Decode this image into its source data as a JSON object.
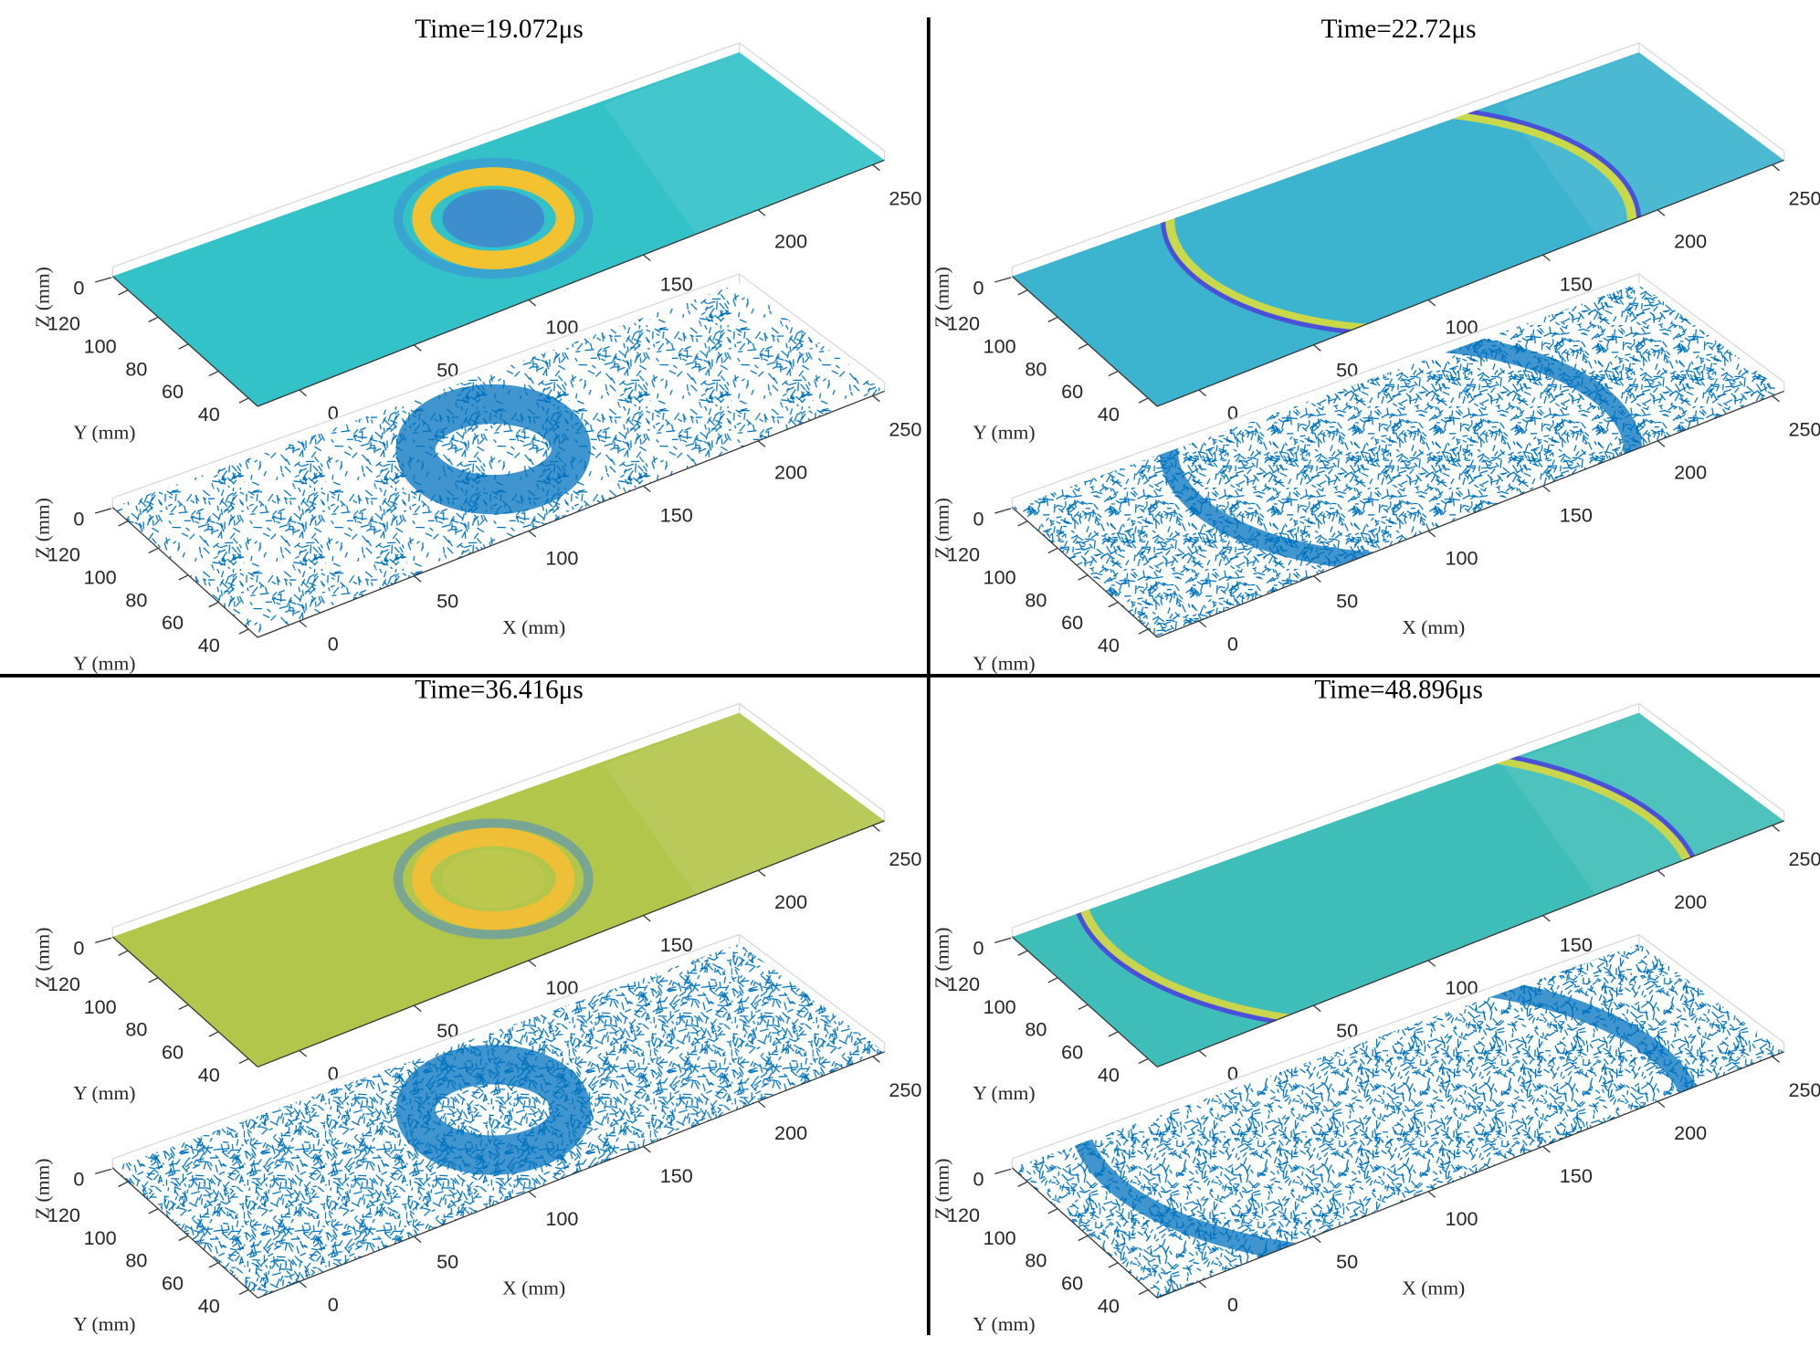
{
  "panels": [
    {
      "title": "Time=19.072μs",
      "surface_color": "#33c2c8",
      "plots": [
        {
          "type": "surface",
          "xticks": [
            0,
            50,
            100,
            150,
            200,
            250
          ],
          "yticks": [
            40,
            60,
            80,
            100,
            120
          ],
          "zticks": [
            0
          ],
          "ylabel": "Y (mm)",
          "zlabel": "Z (mm)"
        },
        {
          "type": "quiver",
          "color": "#0072bd",
          "xticks": [
            0,
            50,
            100,
            150,
            200,
            250
          ],
          "yticks": [
            40,
            60,
            80,
            100,
            120
          ],
          "zticks": [
            0
          ],
          "xlabel": "X (mm)",
          "ylabel": "Y (mm)",
          "zlabel": "Z (mm)"
        }
      ]
    },
    {
      "title": "Time=22.72μs",
      "surface_color": "#3cb4cf",
      "plots": [
        {
          "type": "surface",
          "xticks": [
            0,
            50,
            100,
            150,
            200,
            250
          ],
          "yticks": [
            40,
            60,
            80,
            100,
            120
          ],
          "zticks": [
            0
          ],
          "ylabel": "Y (mm)",
          "zlabel": "Z (mm)"
        },
        {
          "type": "quiver",
          "color": "#0072bd",
          "xticks": [
            0,
            50,
            100,
            150,
            200,
            250
          ],
          "yticks": [
            40,
            60,
            80,
            100,
            120
          ],
          "zticks": [
            0
          ],
          "xlabel": "X (mm)",
          "ylabel": "Y (mm)",
          "zlabel": "Z (mm)"
        }
      ]
    },
    {
      "title": "Time=36.416μs",
      "surface_color": "#b3c64c",
      "plots": [
        {
          "type": "surface",
          "xticks": [
            0,
            50,
            100,
            150,
            200,
            250
          ],
          "yticks": [
            40,
            60,
            80,
            100,
            120
          ],
          "zticks": [
            0
          ],
          "ylabel": "Y (mm)",
          "zlabel": "Z (mm)"
        },
        {
          "type": "quiver",
          "color": "#0072bd",
          "xticks": [
            0,
            50,
            100,
            150,
            200,
            250
          ],
          "yticks": [
            40,
            60,
            80,
            100,
            120
          ],
          "zticks": [
            0
          ],
          "xlabel": "X (mm)",
          "ylabel": "Y (mm)",
          "zlabel": "Z (mm)"
        }
      ]
    },
    {
      "title": "Time=48.896μs",
      "surface_color": "#3fbeb9",
      "plots": [
        {
          "type": "surface",
          "xticks": [
            0,
            50,
            100,
            150,
            200,
            250
          ],
          "yticks": [
            40,
            60,
            80,
            100,
            120
          ],
          "zticks": [
            0
          ],
          "ylabel": "Y (mm)",
          "zlabel": "Z (mm)"
        },
        {
          "type": "quiver",
          "color": "#0072bd",
          "xticks": [
            0,
            50,
            100,
            150,
            200,
            250
          ],
          "yticks": [
            40,
            60,
            80,
            100,
            120
          ],
          "zticks": [
            0
          ],
          "xlabel": "X (mm)",
          "ylabel": "Y (mm)",
          "zlabel": "Z (mm)"
        }
      ]
    }
  ]
}
